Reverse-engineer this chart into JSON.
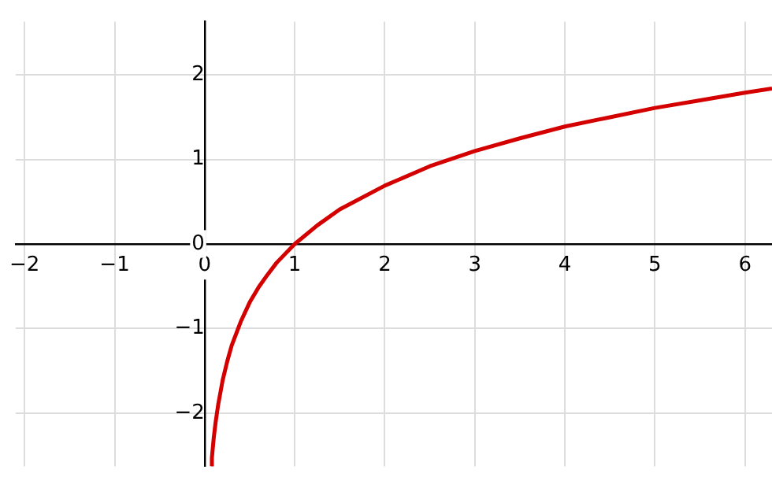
{
  "chart_data": {
    "type": "line",
    "x": [
      0.072,
      0.08,
      0.1,
      0.12,
      0.15,
      0.2,
      0.25,
      0.3,
      0.4,
      0.5,
      0.6,
      0.7,
      0.8,
      1,
      1.25,
      1.5,
      2,
      2.5,
      3,
      3.5,
      4,
      4.5,
      5,
      5.5,
      6,
      6.3
    ],
    "series": [
      {
        "color": "#d40000",
        "values": [
          -2.63,
          -2.53,
          -2.3,
          -2.12,
          -1.9,
          -1.61,
          -1.39,
          -1.2,
          -0.92,
          -0.69,
          -0.51,
          -0.36,
          -0.22,
          0,
          0.22,
          0.41,
          0.69,
          0.92,
          1.1,
          1.25,
          1.39,
          1.5,
          1.61,
          1.7,
          1.79,
          1.84
        ]
      }
    ],
    "xlim": [
      -2.1,
      6.3
    ],
    "ylim": [
      -2.63,
      2.63
    ],
    "xticks": [
      {
        "value": -2,
        "label": "−2"
      },
      {
        "value": -1,
        "label": "−1"
      },
      0,
      1,
      2,
      3,
      4,
      5,
      6
    ],
    "yticks": [
      {
        "value": -2,
        "label": "−2"
      },
      {
        "value": -1,
        "label": "−1"
      },
      0,
      1,
      2
    ],
    "grid": true,
    "marker": "none",
    "line_style": "solid",
    "legend": false
  }
}
